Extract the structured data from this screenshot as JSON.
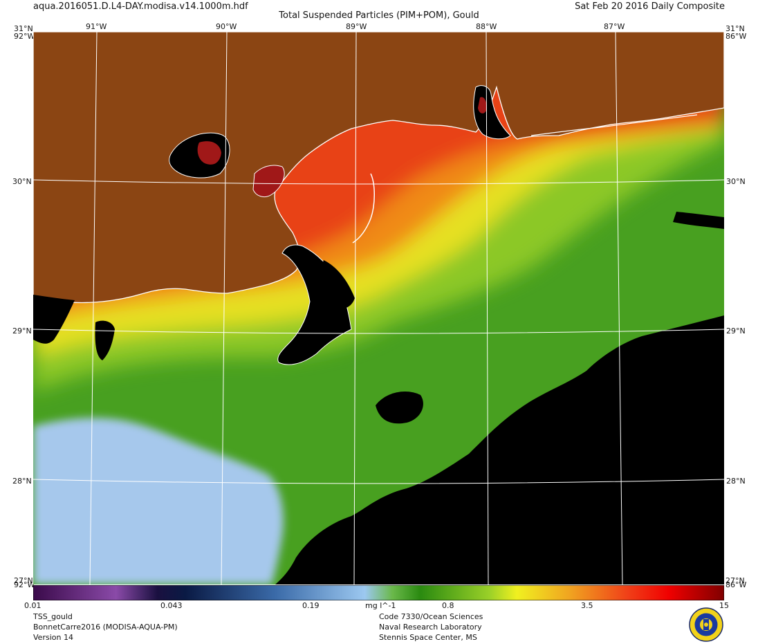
{
  "header": {
    "filename": "aqua.2016051.D.L4-DAY.modisa.v14.1000m.hdf",
    "title": "Total Suspended Particles (PIM+POM), Gould",
    "date": "Sat Feb 20 2016 Daily Composite"
  },
  "map": {
    "lon_range": [
      -91.5,
      -86.25
    ],
    "lat_range": [
      27.3,
      31
    ],
    "lon_ticks": [
      "91°W",
      "90°W",
      "89°W",
      "88°W",
      "87°W"
    ],
    "lat_ticks": [
      "31°N",
      "30°N",
      "29°N",
      "28°N"
    ],
    "corner_labels": {
      "top_left": "31°N",
      "top_left_lon": "92°W",
      "top_right": "31°N",
      "top_right_lon": "86°W",
      "bottom_left": "27°N",
      "bottom_left_lon": "92°W",
      "bottom_right": "27°N",
      "bottom_right_lon": "86°W"
    },
    "colors": {
      "land": "#8B4513",
      "no_data": "#000000",
      "coast": "#ffffff",
      "grid": "#ffffff"
    }
  },
  "colorbar": {
    "tick_labels": [
      "0.01",
      "0.043",
      "0.19",
      "0.8",
      "3.5",
      "15"
    ],
    "units": "mg l^-1",
    "scale": "log",
    "range": [
      0.01,
      15
    ]
  },
  "footer": {
    "left": [
      "TSS_gould",
      "BonnetCarre2016 (MODISA-AQUA-PM)",
      "Version 14"
    ],
    "center": [
      "Code 7330/Ocean Sciences",
      "Naval Research Laboratory",
      "Stennis Space Center, MS"
    ]
  },
  "logo": {
    "icon": "nrl-seal-icon"
  }
}
